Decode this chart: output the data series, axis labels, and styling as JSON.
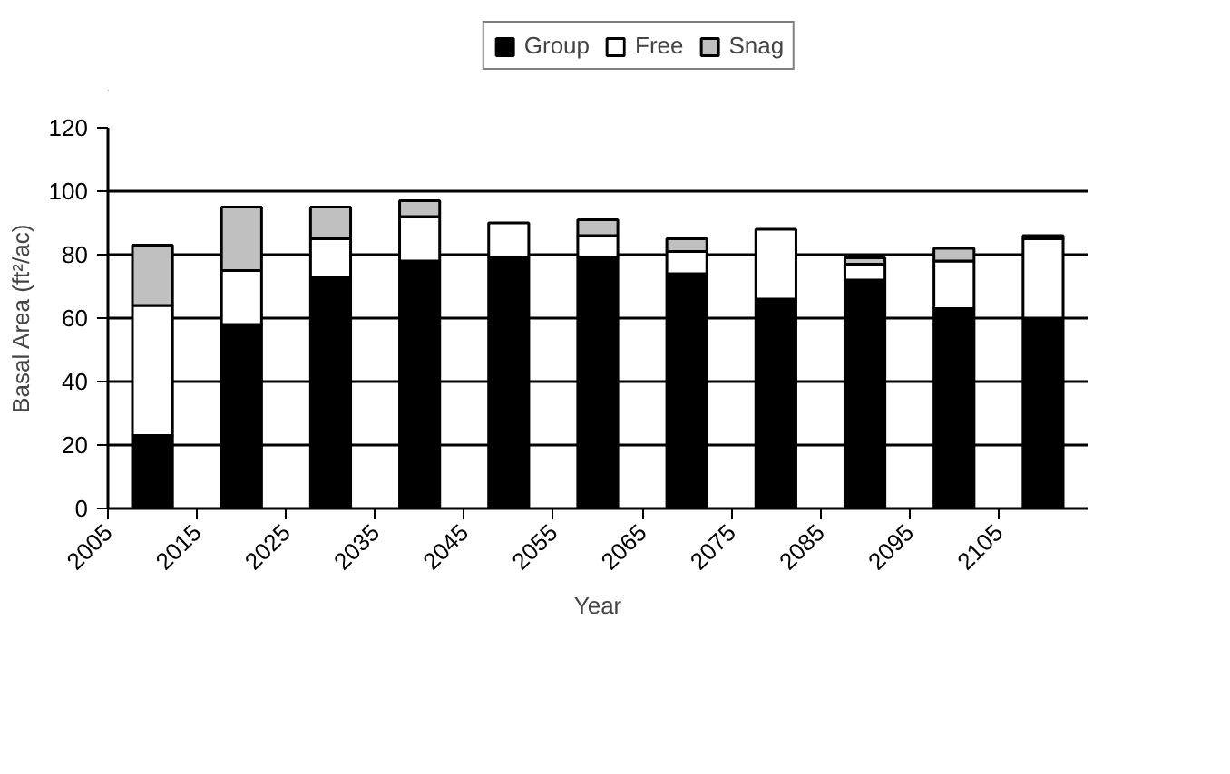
{
  "chart_data": {
    "type": "bar",
    "stacked": true,
    "xlabel": "Year",
    "ylabel": "Basal Area (ft²/ac)",
    "x": [
      2010,
      2020,
      2030,
      2040,
      2050,
      2060,
      2070,
      2080,
      2090,
      2100,
      2110
    ],
    "series": [
      {
        "name": "Group",
        "color": "#000000",
        "values": [
          23,
          58,
          73,
          78,
          79,
          79,
          74,
          66,
          72,
          63,
          60
        ]
      },
      {
        "name": "Free",
        "color": "#ffffff",
        "values": [
          41,
          17,
          12,
          14,
          11,
          7,
          7,
          22,
          5,
          15,
          25
        ]
      },
      {
        "name": "Snag",
        "color": "#c0c0c0",
        "values": [
          19,
          20,
          10,
          5,
          0,
          5,
          4,
          0,
          2,
          4,
          1
        ]
      }
    ],
    "xlim": [
      2005,
      2115
    ],
    "xticks": [
      2005,
      2015,
      2025,
      2035,
      2045,
      2055,
      2065,
      2075,
      2085,
      2095,
      2105
    ],
    "ylim": [
      0,
      120
    ],
    "yticks": [
      0,
      20,
      40,
      60,
      80,
      100,
      120
    ],
    "grid": "y",
    "legend": "top"
  }
}
